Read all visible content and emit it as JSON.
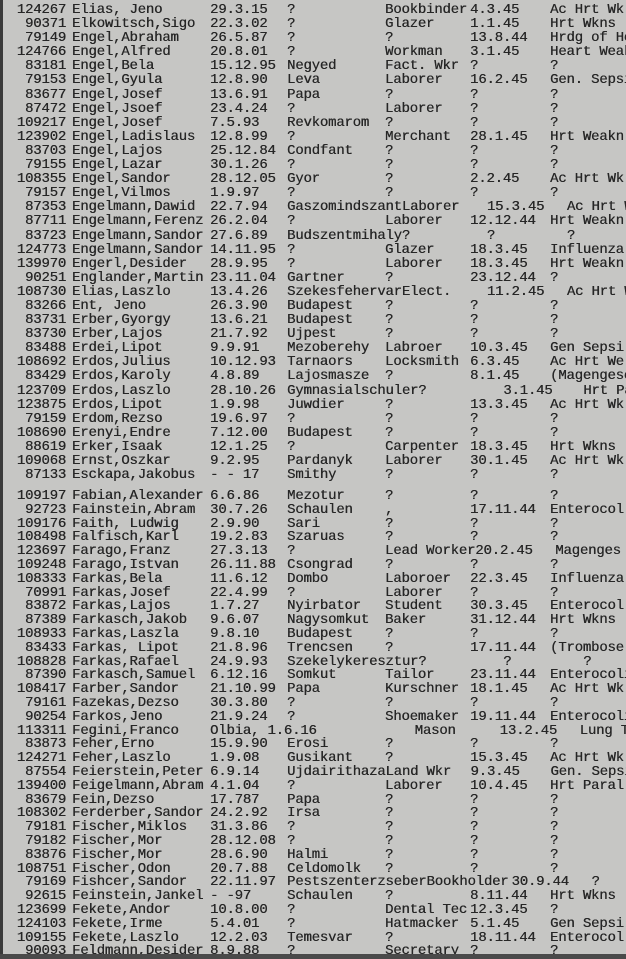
{
  "colors": {
    "paper": "#c6c6c4",
    "ink": "#262626"
  },
  "sections": [
    {
      "rows": [
        {
          "id": "124267",
          "name": "Elias, Jeno",
          "born": "29.3.15",
          "place": "?",
          "occupation": "Bookbinder",
          "died": "4.3.45",
          "cause": "Ac Hrt Wk"
        },
        {
          "id": "90371",
          "name": "Elkowitsch,Sigo",
          "born": "22.3.02",
          "place": "?",
          "occupation": "Glazer",
          "died": "1.1.45",
          "cause": "Hrt Wkns"
        },
        {
          "id": "79149",
          "name": "Engel,Abraham",
          "born": "26.5.87",
          "place": "?",
          "occupation": "?",
          "died": "13.8.44",
          "cause": "Hrdg of He"
        },
        {
          "id": "124766",
          "name": "Engel,Alfred",
          "born": "20.8.01",
          "place": "?",
          "occupation": "Workman",
          "died": "3.1.45",
          "cause": "Heart Weak"
        },
        {
          "id": "83181",
          "name": "Engel,Bela",
          "born": "15.12.95",
          "place": "Negyed",
          "occupation": "Fact. Wkr",
          "died": "?",
          "cause": "?"
        },
        {
          "id": "79153",
          "name": "Engel,Gyula",
          "born": "12.8.90",
          "place": "Leva",
          "occupation": "Laborer",
          "died": "16.2.45",
          "cause": "Gen. Sepsi"
        },
        {
          "id": "83677",
          "name": "Engel,Josef",
          "born": "13.6.91",
          "place": "Papa",
          "occupation": "?",
          "died": "?",
          "cause": "?"
        },
        {
          "id": "87472",
          "name": "Engel,Jsoef",
          "born": "23.4.24",
          "place": "?",
          "occupation": "Laborer",
          "died": "?",
          "cause": "?"
        },
        {
          "id": "109217",
          "name": "Engel,Josef",
          "born": "7.5.93",
          "place": "Revkomarom",
          "occupation": "?",
          "died": "?",
          "cause": "?"
        },
        {
          "id": "123902",
          "name": "Engel,Ladislaus",
          "born": "12.8.99",
          "place": "?",
          "occupation": "Merchant",
          "died": "28.1.45",
          "cause": "Hrt Weakn"
        },
        {
          "id": "83703",
          "name": "Engel,Lajos",
          "born": "25.12.84",
          "place": "Condfant",
          "occupation": "?",
          "died": "?",
          "cause": "?"
        },
        {
          "id": "79155",
          "name": "Engel,Lazar",
          "born": "30.1.26",
          "place": "?",
          "occupation": "?",
          "died": "?",
          "cause": "?"
        },
        {
          "id": "108355",
          "name": "Engel,Sandor",
          "born": "28.12.05",
          "place": "Gyor",
          "occupation": "?",
          "died": "2.2.45",
          "cause": "Ac Hrt Wk"
        },
        {
          "id": "79157",
          "name": "Engel,Vilmos",
          "born": "1.9.97",
          "place": "?",
          "occupation": "?",
          "died": "?",
          "cause": "?"
        },
        {
          "id": "87353",
          "name": "Engelmann,Dawid",
          "born": "22.7.94",
          "place": "Gaszomindszant",
          "occupation": "Laborer",
          "died": "15.3.45",
          "cause": "Ac Hrt Wk"
        },
        {
          "id": "87711",
          "name": "Engelmann,Ferenz",
          "born": "26.2.04",
          "place": "?",
          "occupation": "Laborer",
          "died": "12.12.44",
          "cause": "Hrt Weakn"
        },
        {
          "id": "83723",
          "name": "Engelmann,Sandor",
          "born": "27.6.89",
          "place": "Budszentmihaly",
          "occupation": "?",
          "died": "?",
          "cause": "?"
        },
        {
          "id": "124773",
          "name": "Engelmann,Sandor",
          "born": "14.11.95",
          "place": "?",
          "occupation": "Glazer",
          "died": "18.3.45",
          "cause": "Influenza"
        },
        {
          "id": "139970",
          "name": "Engerl,Desider",
          "born": "28.9.95",
          "place": "?",
          "occupation": "Laborer",
          "died": "18.3.45",
          "cause": "Hrt Weakn"
        },
        {
          "id": "90251",
          "name": "Englander,Martin",
          "born": "23.11.04",
          "place": "Gartner",
          "occupation": "?",
          "died": "23.12.44",
          "cause": "?"
        },
        {
          "id": "108730",
          "name": "Elias,Laszlo",
          "born": "13.4.26",
          "place": "Szekesfehervar",
          "occupation": "Elect.",
          "died": "11.2.45",
          "cause": "Ac Hrt Wk"
        },
        {
          "id": "83266",
          "name": "Ent, Jeno",
          "born": "26.3.90",
          "place": "Budapest",
          "occupation": "?",
          "died": "?",
          "cause": "?"
        },
        {
          "id": "83731",
          "name": "Erber,Gyorgy",
          "born": "13.6.21",
          "place": "Budapest",
          "occupation": "?",
          "died": "?",
          "cause": "?"
        },
        {
          "id": "83730",
          "name": "Erber,Lajos",
          "born": "21.7.92",
          "place": "Ujpest",
          "occupation": "?",
          "died": "?",
          "cause": "?"
        },
        {
          "id": "83488",
          "name": "Erdei,Lipot",
          "born": "9.9.91",
          "place": "Mezoberehy",
          "occupation": "Labroer",
          "died": "10.3.45",
          "cause": "Gen Sepsi"
        },
        {
          "id": "108692",
          "name": "Erdos,Julius",
          "born": "10.12.93",
          "place": "Tarnaors",
          "occupation": "Locksmith",
          "died": "6.3.45",
          "cause": "Ac Hrt We"
        },
        {
          "id": "83429",
          "name": "Erdos,Karoly",
          "born": "4.8.89",
          "place": "Lajosmasze",
          "occupation": "?",
          "died": "8.1.45",
          "cause": "(Magengeschwu"
        },
        {
          "id": "123709",
          "name": "Erdos,Laszlo",
          "born": "28.10.26",
          "place": "Gymnasialschuler",
          "occupation": "?",
          "died": "3.1.45",
          "cause": "Hrt Paral"
        },
        {
          "id": "123875",
          "name": "Erdos,Lipot",
          "born": "1.9.98",
          "place": "Juwdier",
          "occupation": "?",
          "died": "13.3.45",
          "cause": "Ac Hrt Wk"
        },
        {
          "id": "79159",
          "name": "Erdom,Rezso",
          "born": "19.6.97",
          "place": "?",
          "occupation": "?",
          "died": "?",
          "cause": "?"
        },
        {
          "id": "108690",
          "name": "Erenyi,Endre",
          "born": "7.12.00",
          "place": "Budapest",
          "occupation": "?",
          "died": "?",
          "cause": "?"
        },
        {
          "id": "88619",
          "name": "Erker,Isaak",
          "born": "12.1.25",
          "place": "?",
          "occupation": "Carpenter",
          "died": "18.3.45",
          "cause": "Hrt Wkns"
        },
        {
          "id": "109068",
          "name": "Ernst,Oszkar",
          "born": "9.2.95",
          "place": "Pardanyk",
          "occupation": "Laborer",
          "died": "30.1.45",
          "cause": "Ac Hrt Wk"
        },
        {
          "id": "87133",
          "name": "Esckapa,Jakobus",
          "born": "- - 17",
          "place": "Smithy",
          "occupation": "?",
          "died": "?",
          "cause": "?"
        }
      ]
    },
    {
      "rows": [
        {
          "id": "109197",
          "name": "Fabian,Alexander",
          "born": "6.6.86",
          "place": "Mezotur",
          "occupation": "?",
          "died": "?",
          "cause": "?"
        },
        {
          "id": "92723",
          "name": "Fainstein,Abram",
          "born": "30.7.26",
          "place": "Schaulen",
          "occupation": ",",
          "died": "17.11.44",
          "cause": "Enterocol"
        },
        {
          "id": "109176",
          "name": "Faith, Ludwig",
          "born": "2.9.90",
          "place": "Sari",
          "occupation": "?",
          "died": "?",
          "cause": "?"
        },
        {
          "id": "108498",
          "name": "Falfisch,Karl",
          "born": "19.2.83",
          "place": "Szaruas",
          "occupation": "?",
          "died": "?",
          "cause": "?"
        },
        {
          "id": "123697",
          "name": "Farago,Franz",
          "born": "27.3.13",
          "place": "?",
          "occupation": "Lead Worker",
          "died": "20.2.45",
          "cause": "Magenges"
        },
        {
          "id": "109248",
          "name": "Farago,Istvan",
          "born": "26.11.88",
          "place": "Csongrad",
          "occupation": "?",
          "died": "?",
          "cause": "?"
        },
        {
          "id": "108333",
          "name": "Farkas,Bela",
          "born": "11.6.12",
          "place": "Dombo",
          "occupation": "Laboroer",
          "died": "22.3.45",
          "cause": "Influenza"
        },
        {
          "id": "70991",
          "name": "Farkas,Josef",
          "born": "22.4.99",
          "place": "?",
          "occupation": "Laborer",
          "died": "?",
          "cause": "?"
        },
        {
          "id": "83872",
          "name": "Farkas,Lajos",
          "born": "1.7.27",
          "place": "Nyirbator",
          "occupation": "Student",
          "died": "30.3.45",
          "cause": "Enterocol"
        },
        {
          "id": "87389",
          "name": "Farkasch,Jakob",
          "born": "9.6.07",
          "place": "Nagysomkut",
          "occupation": "Baker",
          "died": "31.12.44",
          "cause": "Hrt Wkns"
        },
        {
          "id": "108933",
          "name": "Farkas,Laszla",
          "born": "9.8.10",
          "place": "Budapest",
          "occupation": "?",
          "died": "?",
          "cause": "?"
        },
        {
          "id": "83433",
          "name": "Farkas, Lipot",
          "born": "21.8.96",
          "place": "Trencsen",
          "occupation": "?",
          "died": "17.11.44",
          "cause": "(Trombose"
        },
        {
          "id": "108828",
          "name": "Farkas,Rafael",
          "born": "24.9.93",
          "place": "Szekelykeresztur",
          "occupation": "?",
          "died": "?",
          "cause": "?"
        },
        {
          "id": "87390",
          "name": "Farkasch,Samuel",
          "born": "6.12.16",
          "place": "Somkut",
          "occupation": "Tailor",
          "died": "23.11.44",
          "cause": "Enterocoli"
        },
        {
          "id": "108417",
          "name": "Farber,Sandor",
          "born": "21.10.99",
          "place": "Papa",
          "occupation": "Kurschner",
          "died": "18.1.45",
          "cause": "Ac Hrt Wk"
        },
        {
          "id": "79161",
          "name": "Fazekas,Dezso",
          "born": "30.3.80",
          "place": "?",
          "occupation": "?",
          "died": "?",
          "cause": "?"
        },
        {
          "id": "90254",
          "name": "Farkos,Jeno",
          "born": "21.9.24",
          "place": "?",
          "occupation": "Shoemaker",
          "died": "19.11.44",
          "cause": "Enterocoli"
        },
        {
          "id": "113311",
          "name": "Fegini,Franco",
          "born": "Olbia, 1.6.16",
          "place": "",
          "occupation": "Mason",
          "died": "13.2.45",
          "cause": "Lung Trou"
        },
        {
          "id": "83873",
          "name": "Feher,Erno",
          "born": "15.9.90",
          "place": "Erosi",
          "occupation": "?",
          "died": "?",
          "cause": "?"
        },
        {
          "id": "124271",
          "name": "Feher,Laszlo",
          "born": "1.9.08",
          "place": "Gusikant",
          "occupation": "?",
          "died": "15.3.45",
          "cause": "Ac Hrt Wk"
        },
        {
          "id": "87554",
          "name": "Feierstein,Peter",
          "born": "6.9.14",
          "place": "Ujdairithaza",
          "occupation": "Land Wkr",
          "died": "9.3.45",
          "cause": "Gen. Sepsi"
        },
        {
          "id": "139400",
          "name": "Feigelmann,Abram",
          "born": "4.1.04",
          "place": "?",
          "occupation": "Laborer",
          "died": "10.4.45",
          "cause": "Hrt Paral"
        },
        {
          "id": "83679",
          "name": "Fein,Dezso",
          "born": "17.787",
          "place": "Papa",
          "occupation": "?",
          "died": "?",
          "cause": "?"
        },
        {
          "id": "108302",
          "name": "Ferderber,Sandor",
          "born": "24.2.92",
          "place": "Irsa",
          "occupation": "?",
          "died": "?",
          "cause": "?"
        },
        {
          "id": "79181",
          "name": "Fischer,Miklos",
          "born": "31.3.86",
          "place": "?",
          "occupation": "?",
          "died": "?",
          "cause": "?"
        },
        {
          "id": "79182",
          "name": "Fischer,Mor",
          "born": "28.12.08",
          "place": "?",
          "occupation": "?",
          "died": "?",
          "cause": "?"
        },
        {
          "id": "83876",
          "name": "Fischer,Mor",
          "born": "28.6.90",
          "place": "Halmi",
          "occupation": "?",
          "died": "?",
          "cause": "?"
        },
        {
          "id": "108751",
          "name": "Fischer,Odon",
          "born": "20.7.88",
          "place": "Celdomolk",
          "occupation": "?",
          "died": "?",
          "cause": "?"
        },
        {
          "id": "79169",
          "name": "Fishcer,Sandor",
          "born": "22.11.97",
          "place": "Pestszenterzseber",
          "occupation": "Bookholder",
          "died": "30.9.44",
          "cause": "?"
        },
        {
          "id": "92615",
          "name": "Feinstein,Jankel",
          "born": "-   -97",
          "place": "Schaulen",
          "occupation": "?",
          "died": "8.11.44",
          "cause": "Hrt Wkns"
        },
        {
          "id": "123699",
          "name": "Fekete,Andor",
          "born": "10.8.00",
          "place": "?",
          "occupation": "Dental Tec",
          "died": "12.3.45",
          "cause": "?"
        },
        {
          "id": "124103",
          "name": "Fekete,Irme",
          "born": "5.4.01",
          "place": "?",
          "occupation": "Hatmacker",
          "died": "5.1.45",
          "cause": "Gen Sepsi"
        },
        {
          "id": "109155",
          "name": "Fekete,Laszlo",
          "born": "12.2.03",
          "place": "Temesvar",
          "occupation": "?",
          "died": "18.11.44",
          "cause": "Enterocol"
        },
        {
          "id": "90093",
          "name": "Feldmann,Desider",
          "born": "8.9.88",
          "place": "?",
          "occupation": "Secretary",
          "died": "?",
          "cause": "?"
        }
      ]
    }
  ]
}
